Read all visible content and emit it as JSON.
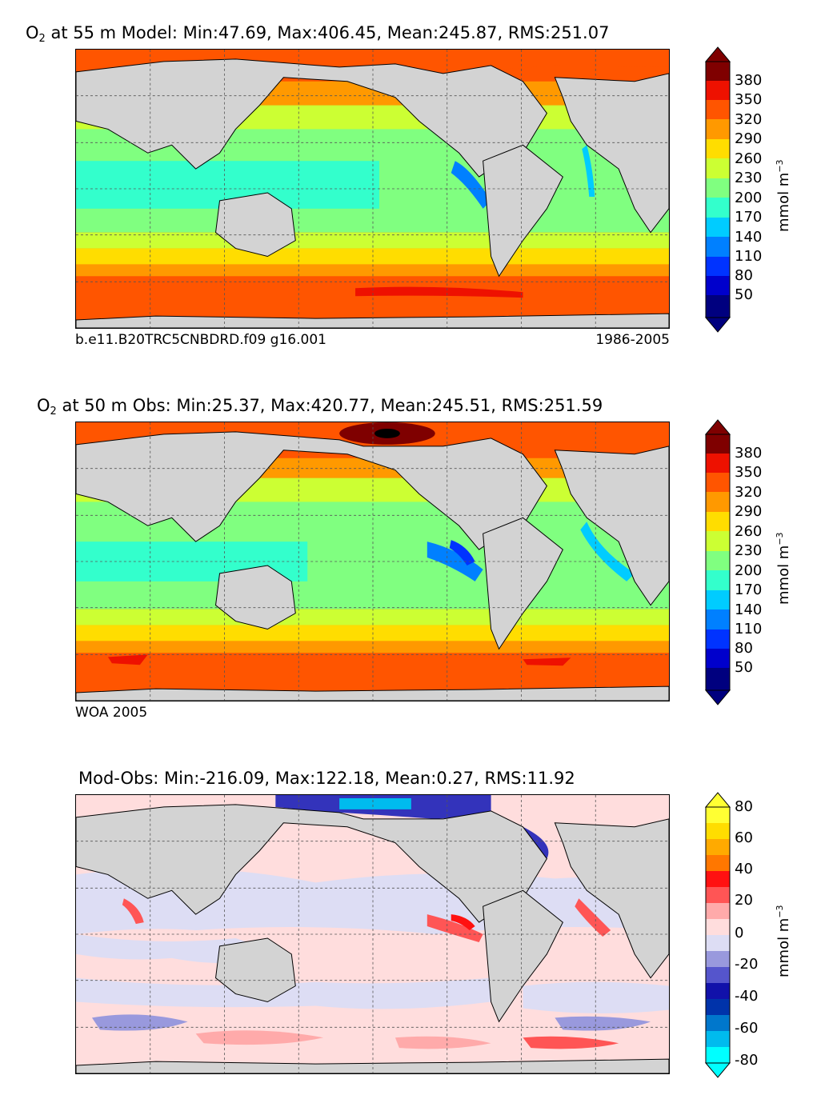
{
  "panels": [
    {
      "title_species": "O",
      "title_sub": "2",
      "title_rest": " at 55 m Model: Min:47.69, Max:406.45, Mean:245.87, RMS:251.07",
      "footer_left": "b.e11.B20TRC5CNBDRD.f09 g16.001",
      "footer_right": "1986-2005",
      "colorbar": {
        "ticks": [
          "380",
          "350",
          "320",
          "290",
          "260",
          "230",
          "200",
          "170",
          "140",
          "110",
          "80",
          "50"
        ],
        "unit": "mmol m",
        "unit_sup": "−3",
        "colors": [
          "#00007f",
          "#0000cc",
          "#0033ff",
          "#0080ff",
          "#00ccff",
          "#33ffcc",
          "#80ff80",
          "#ccff33",
          "#ffdd00",
          "#ff9900",
          "#ff5500",
          "#ee1100",
          "#aa0000",
          "#7f0000"
        ]
      }
    },
    {
      "title_species": "O",
      "title_sub": "2",
      "title_rest": " at 50 m Obs: Min:25.37, Max:420.77, Mean:245.51, RMS:251.59",
      "footer_left": "WOA 2005",
      "footer_right": "",
      "colorbar": {
        "ticks": [
          "380",
          "350",
          "320",
          "290",
          "260",
          "230",
          "200",
          "170",
          "140",
          "110",
          "80",
          "50"
        ],
        "unit": "mmol m",
        "unit_sup": "−3",
        "colors": [
          "#00007f",
          "#0000cc",
          "#0033ff",
          "#0080ff",
          "#00ccff",
          "#33ffcc",
          "#80ff80",
          "#ccff33",
          "#ffdd00",
          "#ff9900",
          "#ff5500",
          "#ee1100",
          "#aa0000",
          "#7f0000"
        ]
      }
    },
    {
      "title_species": "",
      "title_sub": "",
      "title_rest": "Mod-Obs: Min:-216.09, Max:122.18, Mean:0.27, RMS:11.92",
      "footer_left": "",
      "footer_right": "",
      "colorbar": {
        "ticks": [
          "80",
          "60",
          "40",
          "20",
          "0",
          "-20",
          "-40",
          "-60",
          "-80"
        ],
        "unit": "mmol m",
        "unit_sup": "−3",
        "colors": [
          "#00ffff",
          "#00bbee",
          "#0077cc",
          "#0033aa",
          "#1111aa",
          "#5555cc",
          "#9999dd",
          "#ddddf4",
          "#ffdddd",
          "#ffaaaa",
          "#ff5555",
          "#ff1111",
          "#ff7700",
          "#ffaa00",
          "#ffdd00",
          "#ffff33"
        ]
      }
    }
  ]
}
